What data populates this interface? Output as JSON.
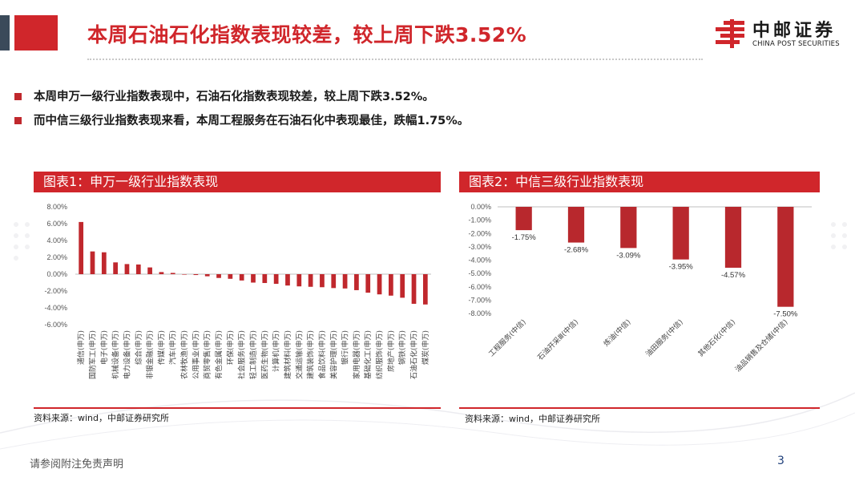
{
  "page": {
    "title": "本周石油石化指数表现较差，较上周下跌3.52%",
    "logo_cn": "中邮证券",
    "logo_en": "CHINA POST SECURITIES",
    "footer": "请参阅附注免责声明",
    "page_number": "3",
    "accent_color": "#d0262b"
  },
  "bullets": [
    "本周申万一级行业指数表现中，石油石化指数表现较差，较上周下跌3.52%。",
    "而中信三级行业指数表现来看，本周工程服务在石油石化中表现最佳，跌幅1.75%。"
  ],
  "panels": [
    {
      "header": "图表1：申万一级行业指数表现",
      "source": "资料来源：wind，中邮证券研究所"
    },
    {
      "header": "图表2：中信三级行业指数表现",
      "source": "资料来源：wind，中邮证券研究所"
    }
  ],
  "chart_data": [
    {
      "type": "bar",
      "title": "申万一级行业指数表现",
      "xlabel": "",
      "ylabel": "",
      "ylim": [
        -6,
        8
      ],
      "yticks": [
        8,
        6,
        4,
        2,
        0,
        -2,
        -4,
        -6
      ],
      "ytick_labels": [
        "8.00%",
        "6.00%",
        "4.00%",
        "2.00%",
        "0.00%",
        "-2.00%",
        "-4.00%",
        "-6.00%"
      ],
      "grid": false,
      "categories": [
        "通信(申万)",
        "国防军工(申万)",
        "电子(申万)",
        "机械设备(申万)",
        "电力设备(申万)",
        "综合(申万)",
        "非银金融(申万)",
        "传媒(申万)",
        "汽车(申万)",
        "农林牧渔(申万)",
        "公用事业(申万)",
        "商贸零售(申万)",
        "有色金属(申万)",
        "环保(申万)",
        "社会服务(申万)",
        "轻工制造(申万)",
        "医药生物(申万)",
        "计算机(申万)",
        "建筑材料(申万)",
        "交通运输(申万)",
        "建筑装饰(申万)",
        "食品饮料(申万)",
        "美容护理(申万)",
        "银行(申万)",
        "家用电器(申万)",
        "基础化工(申万)",
        "纺织服饰(申万)",
        "房地产(申万)",
        "钢铁(申万)",
        "石油石化(申万)",
        "煤炭(申万)"
      ],
      "values": [
        6.2,
        2.7,
        2.6,
        1.4,
        1.2,
        1.15,
        0.8,
        0.25,
        0.15,
        -0.05,
        -0.1,
        -0.25,
        -0.45,
        -0.55,
        -0.75,
        -1.0,
        -1.05,
        -1.15,
        -1.35,
        -1.45,
        -1.5,
        -1.55,
        -1.65,
        -1.7,
        -1.9,
        -2.2,
        -2.4,
        -2.55,
        -2.8,
        -3.52,
        -3.6
      ],
      "bar_color": "#c0282d"
    },
    {
      "type": "bar",
      "title": "中信三级行业指数表现",
      "xlabel": "",
      "ylabel": "",
      "ylim": [
        -8,
        0
      ],
      "yticks": [
        0,
        -1,
        -2,
        -3,
        -4,
        -5,
        -6,
        -7,
        -8
      ],
      "ytick_labels": [
        "0.00%",
        "-1.00%",
        "-2.00%",
        "-3.00%",
        "-4.00%",
        "-5.00%",
        "-6.00%",
        "-7.00%",
        "-8.00%"
      ],
      "grid": false,
      "categories": [
        "工程服务(中信)",
        "石油开采Ⅲ(中信)",
        "炼油(中信)",
        "油田服务(中信)",
        "其他石化(中信)",
        "油品销售及仓储(中信)"
      ],
      "values": [
        -1.75,
        -2.68,
        -3.09,
        -3.95,
        -4.57,
        -7.5
      ],
      "data_labels": [
        "-1.75%",
        "-2.68%",
        "-3.09%",
        "-3.95%",
        "-4.57%",
        "-7.50%"
      ],
      "bar_color": "#b8282d"
    }
  ]
}
